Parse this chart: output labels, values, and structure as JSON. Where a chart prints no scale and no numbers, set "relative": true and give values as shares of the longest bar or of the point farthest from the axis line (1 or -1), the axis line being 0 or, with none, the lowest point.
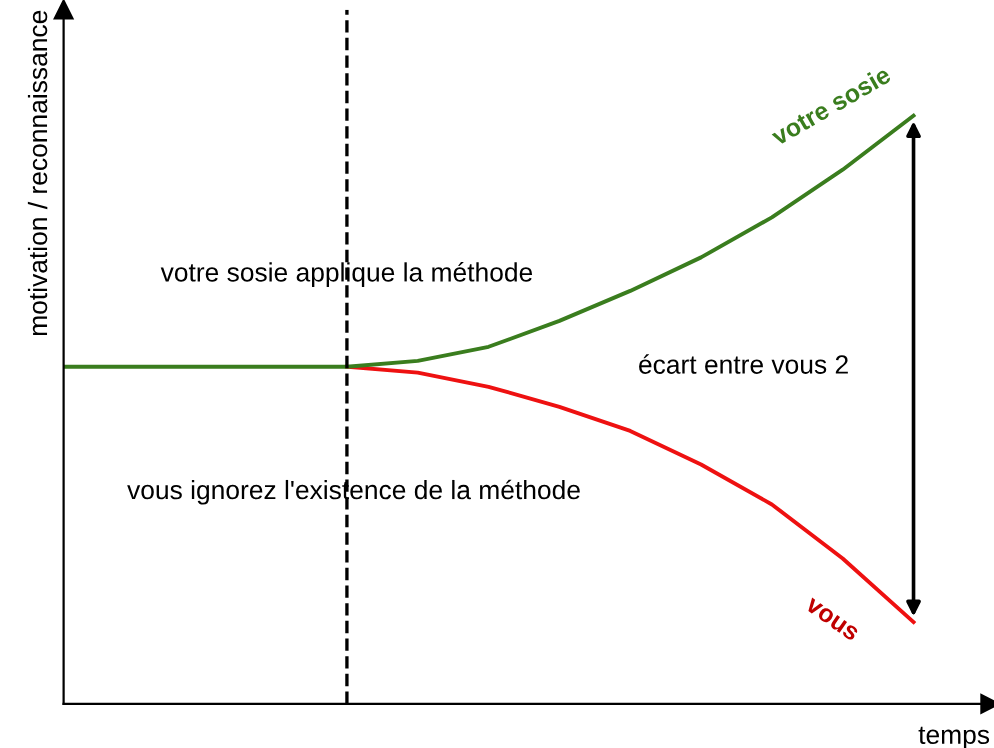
{
  "chart_data": {
    "type": "line",
    "relative": true,
    "xlabel": "temps",
    "ylabel": "motivation / reconnaissance",
    "categories": [
      null,
      null,
      null,
      null,
      null,
      null,
      null,
      null,
      null,
      null,
      null,
      null,
      null
    ],
    "series": [
      {
        "name": "votre sosie",
        "color": "#3a7d1e",
        "values": [
          0.573,
          0.573,
          0.573,
          0.573,
          0.573,
          0.583,
          0.607,
          0.651,
          0.702,
          0.759,
          0.827,
          0.908,
          1
        ]
      },
      {
        "name": "vous",
        "color": "#ee1111",
        "values": [
          null,
          null,
          null,
          null,
          0.573,
          0.563,
          0.539,
          0.505,
          0.464,
          0.407,
          0.339,
          0.247,
          0.139
        ]
      }
    ],
    "annotations": [
      "votre sosie applique la méthode",
      "vous ignorez l'existence de la méthode",
      "écart entre vous 2"
    ],
    "grid": false,
    "legend": false,
    "marker": "none",
    "line_style": "solid"
  }
}
